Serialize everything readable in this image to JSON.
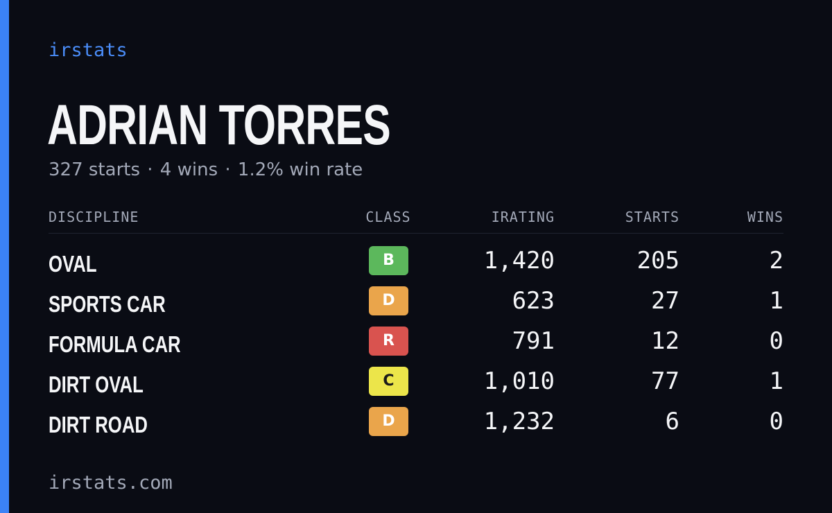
{
  "brand": "irstats",
  "driver": {
    "name": "ADRIAN TORRES",
    "starts_text": "327 starts",
    "wins_text": "4 wins",
    "win_rate_text": "1.2% win rate",
    "separator": "·"
  },
  "table": {
    "headers": {
      "discipline": "DISCIPLINE",
      "class": "CLASS",
      "irating": "IRATING",
      "starts": "STARTS",
      "wins": "WINS"
    },
    "rows": [
      {
        "discipline": "OVAL",
        "class": "B",
        "class_color": "#5cb85c",
        "class_text_color": "#ffffff",
        "irating": "1,420",
        "starts": "205",
        "wins": "2"
      },
      {
        "discipline": "SPORTS CAR",
        "class": "D",
        "class_color": "#eaa54b",
        "class_text_color": "#ffffff",
        "irating": "623",
        "starts": "27",
        "wins": "1"
      },
      {
        "discipline": "FORMULA CAR",
        "class": "R",
        "class_color": "#d9534f",
        "class_text_color": "#ffffff",
        "irating": "791",
        "starts": "12",
        "wins": "0"
      },
      {
        "discipline": "DIRT OVAL",
        "class": "C",
        "class_color": "#ece54a",
        "class_text_color": "#1a1a1a",
        "irating": "1,010",
        "starts": "77",
        "wins": "1"
      },
      {
        "discipline": "DIRT ROAD",
        "class": "D",
        "class_color": "#eaa54b",
        "class_text_color": "#ffffff",
        "irating": "1,232",
        "starts": "6",
        "wins": "0"
      }
    ]
  },
  "footer": "irstats.com",
  "colors": {
    "background": "#0a0c14",
    "accent": "#3b82f6",
    "brand": "#4a8cf7",
    "text": "#f5f6f8",
    "muted": "#a3a9b8"
  }
}
